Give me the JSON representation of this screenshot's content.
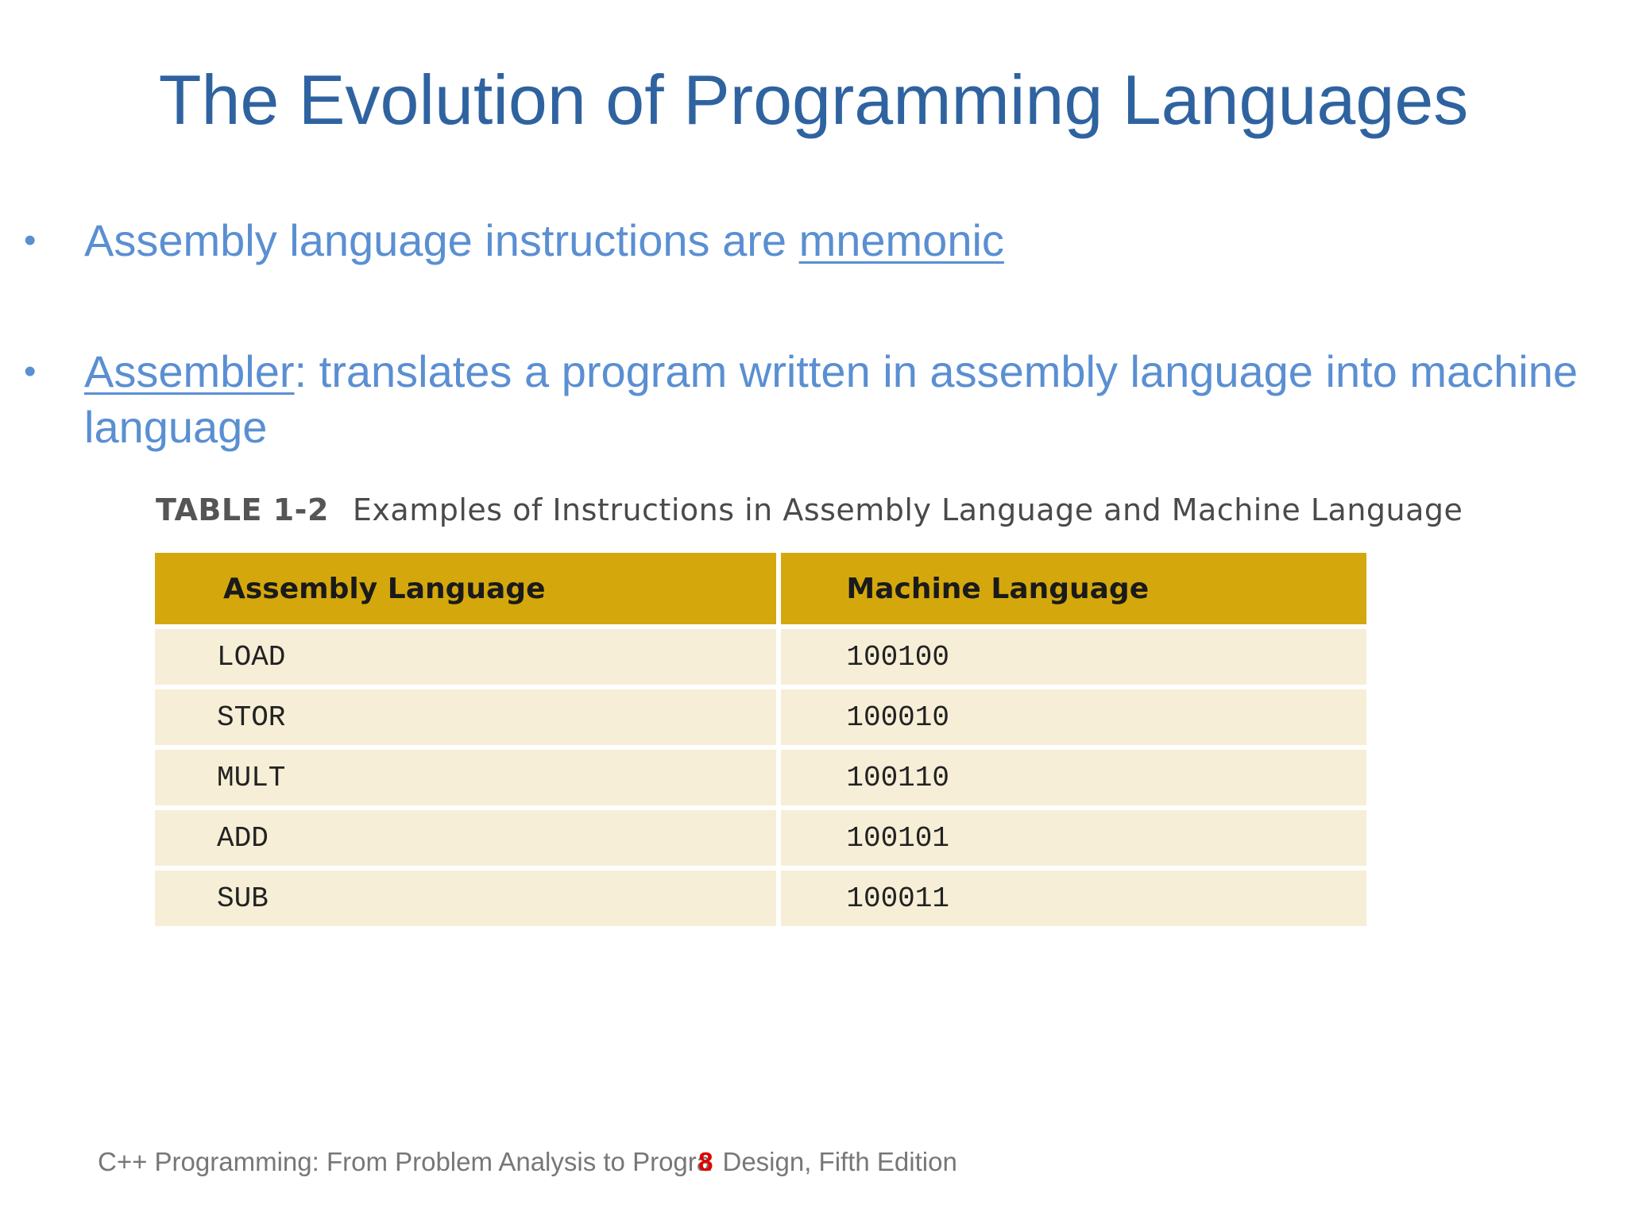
{
  "slide": {
    "title": "The Evolution of Programming Languages",
    "bullets": [
      {
        "prefix": "Assembly language instructions are ",
        "term": "mnemonic",
        "suffix": ""
      },
      {
        "term": "Assembler",
        "suffix": ": translates a program written in assembly language into machine language"
      }
    ],
    "table": {
      "label": "TABLE 1-2",
      "caption": "Examples of Instructions in Assembly Language and Machine Language",
      "headers": [
        "Assembly Language",
        "Machine Language"
      ],
      "rows": [
        [
          "LOAD",
          "100100"
        ],
        [
          "STOR",
          "100010"
        ],
        [
          "MULT",
          "100110"
        ],
        [
          "ADD",
          "100101"
        ],
        [
          "SUB",
          "100011"
        ]
      ],
      "header_color": "#d4a80c",
      "row_color": "#f6eed6"
    },
    "footer": {
      "text_before": "C++ Programming: From Problem Analysis to Progra",
      "page_number": "8",
      "text_after": "Design, Fifth Edition"
    },
    "colors": {
      "title": "#2f63a0",
      "bullet_text": "#5a8fd2",
      "page_number": "#e00000"
    }
  }
}
